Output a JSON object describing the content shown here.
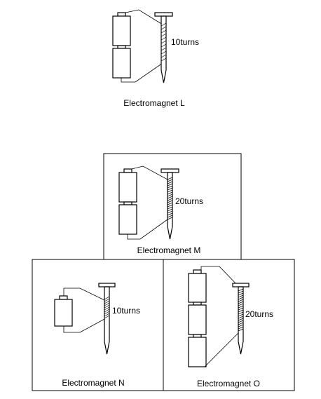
{
  "electromagnets": [
    {
      "id": "L",
      "caption": "Electromagnet L",
      "turns_label": "10turns",
      "batteries": 2,
      "turns": 10,
      "framed": false
    },
    {
      "id": "M",
      "caption": "Electromagnet M",
      "turns_label": "20turns",
      "batteries": 2,
      "turns": 20,
      "framed": true
    },
    {
      "id": "N",
      "caption": "Electromagnet N",
      "turns_label": "10turns",
      "batteries": 1,
      "turns": 10,
      "framed": true
    },
    {
      "id": "O",
      "caption": "Electromagnet O",
      "turns_label": "20turns",
      "batteries": 3,
      "turns": 20,
      "framed": true
    }
  ]
}
